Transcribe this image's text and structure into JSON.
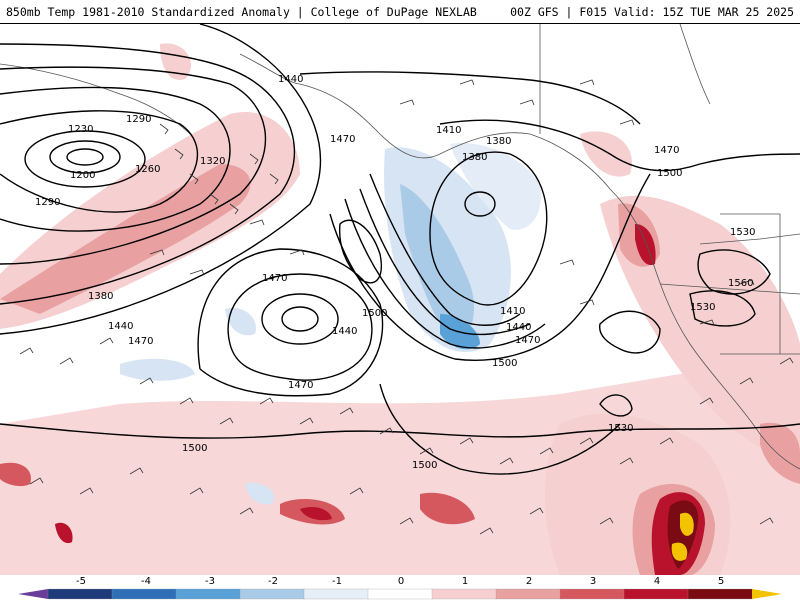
{
  "header": {
    "left_title": "850mb Temp 1981-2010 Standardized Anomaly | College of DuPage NEXLAB",
    "right_title": "00Z GFS | F015 Valid: 15Z TUE MAR 25 2025"
  },
  "map": {
    "contour_labels": [
      "1230",
      "1200",
      "1260",
      "1290",
      "1290",
      "1320",
      "1380",
      "1440",
      "1470",
      "1440",
      "1470",
      "1410",
      "1380",
      "1470",
      "1500",
      "1470",
      "1440",
      "1500",
      "1470",
      "1410",
      "1440",
      "1470",
      "1500",
      "1530",
      "1560",
      "1530",
      "1530",
      "1500",
      "1500",
      "1380"
    ]
  },
  "colorbar": {
    "ticks": [
      "-5",
      "-4",
      "-3",
      "-2",
      "-1",
      "0",
      "1",
      "2",
      "3",
      "4",
      "5"
    ],
    "colors": [
      "#6a3d9a",
      "#1f3a7a",
      "#2f6fb8",
      "#5aa1d8",
      "#a9cbe8",
      "#e6eef7",
      "#ffffff",
      "#f6d0d0",
      "#e8a0a0",
      "#d6585f",
      "#b8122c",
      "#7a0a14",
      "#f3c300"
    ]
  }
}
